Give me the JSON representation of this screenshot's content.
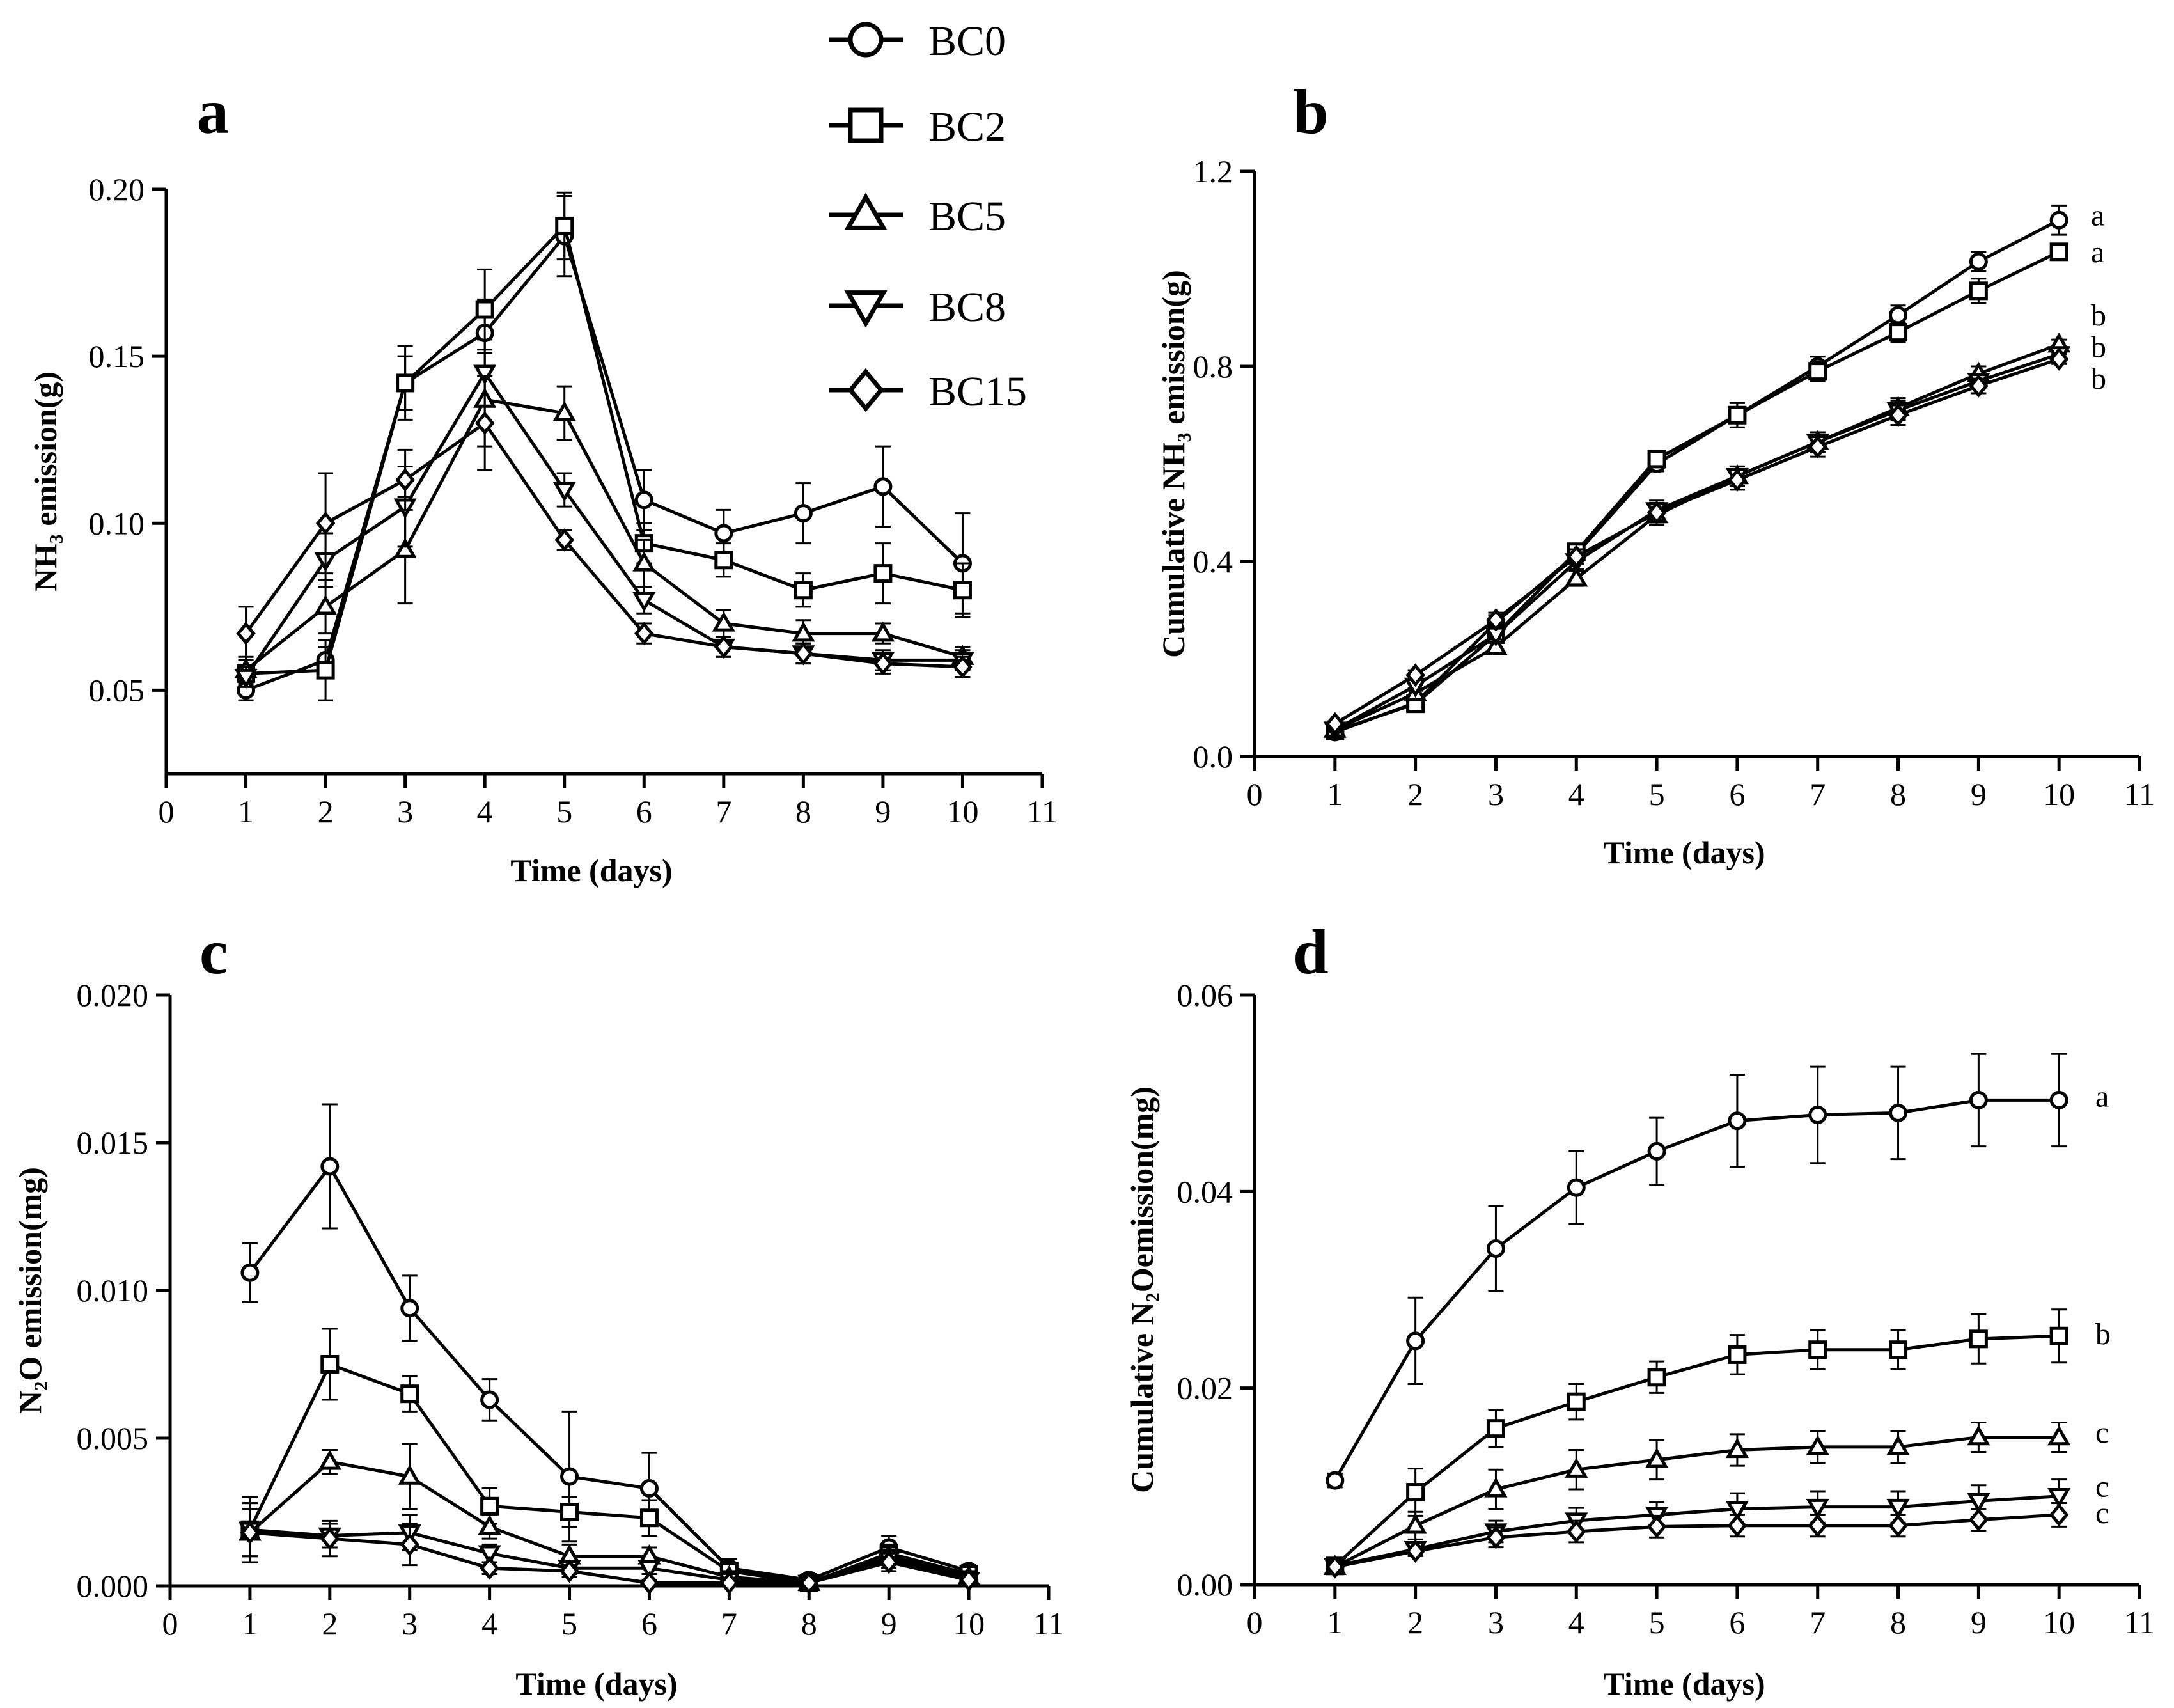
{
  "legend": {
    "entries": [
      {
        "name": "BC0",
        "marker": "circle"
      },
      {
        "name": "BC2",
        "marker": "square"
      },
      {
        "name": "BC5",
        "marker": "triangle-up"
      },
      {
        "name": "BC8",
        "marker": "triangle-down"
      },
      {
        "name": "BC15",
        "marker": "diamond"
      }
    ]
  },
  "chart_data": [
    {
      "panel": "a",
      "type": "line",
      "xlabel": "Time (days)",
      "ylabel": "NH₃ emission(g)",
      "xlim": [
        0,
        11
      ],
      "ylim": [
        0.025,
        0.2
      ],
      "xticks": [
        "0",
        "1",
        "2",
        "3",
        "4",
        "5",
        "6",
        "7",
        "8",
        "9",
        "10",
        "11"
      ],
      "yticks": [
        "0.05",
        "0.10",
        "0.15",
        "0.20"
      ],
      "x": [
        1,
        2,
        3,
        4,
        5,
        6,
        7,
        8,
        9,
        10
      ],
      "series": [
        {
          "name": "BC0",
          "values": [
            0.05,
            0.059,
            0.142,
            0.157,
            0.186,
            0.107,
            0.097,
            0.103,
            0.111,
            0.088
          ],
          "errors": [
            0.003,
            0.004,
            0.008,
            0.01,
            0.012,
            0.009,
            0.007,
            0.009,
            0.012,
            0.015
          ]
        },
        {
          "name": "BC2",
          "values": [
            0.055,
            0.056,
            0.142,
            0.164,
            0.189,
            0.094,
            0.089,
            0.08,
            0.085,
            0.08
          ],
          "errors": [
            0.004,
            0.009,
            0.011,
            0.012,
            0.01,
            0.006,
            0.005,
            0.005,
            0.009,
            0.008
          ]
        },
        {
          "name": "BC5",
          "values": [
            0.056,
            0.075,
            0.092,
            0.137,
            0.133,
            0.088,
            0.07,
            0.067,
            0.067,
            0.06
          ],
          "errors": [
            0.004,
            0.008,
            0.016,
            0.014,
            0.008,
            0.007,
            0.004,
            0.004,
            0.003,
            0.003
          ]
        },
        {
          "name": "BC8",
          "values": [
            0.054,
            0.089,
            0.105,
            0.145,
            0.11,
            0.077,
            0.063,
            0.061,
            0.059,
            0.059
          ],
          "errors": [
            0.003,
            0.008,
            0.012,
            0.01,
            0.005,
            0.004,
            0.003,
            0.003,
            0.003,
            0.003
          ]
        },
        {
          "name": "BC15",
          "values": [
            0.067,
            0.1,
            0.113,
            0.13,
            0.095,
            0.067,
            0.063,
            0.061,
            0.058,
            0.057
          ],
          "errors": [
            0.008,
            0.015,
            0.009,
            0.014,
            0.003,
            0.003,
            0.003,
            0.003,
            0.003,
            0.003
          ]
        }
      ],
      "significance": []
    },
    {
      "panel": "b",
      "type": "line",
      "xlabel": "Time (days)",
      "ylabel": "Cumulative NH₃ emission(g)",
      "xlim": [
        0,
        11
      ],
      "ylim": [
        0,
        1.2
      ],
      "xticks": [
        "0",
        "1",
        "2",
        "3",
        "4",
        "5",
        "6",
        "7",
        "8",
        "9",
        "10",
        "11"
      ],
      "yticks": [
        "0.0",
        "0.4",
        "0.8",
        "1.2"
      ],
      "x": [
        1,
        2,
        3,
        4,
        5,
        6,
        7,
        8,
        9,
        10
      ],
      "series": [
        {
          "name": "BC0",
          "values": [
            0.05,
            0.11,
            0.275,
            0.415,
            0.6,
            0.7,
            0.8,
            0.905,
            1.015,
            1.1
          ],
          "errors": [
            0.005,
            0.01,
            0.015,
            0.015,
            0.015,
            0.025,
            0.02,
            0.02,
            0.02,
            0.03
          ]
        },
        {
          "name": "BC2",
          "values": [
            0.052,
            0.108,
            0.25,
            0.42,
            0.61,
            0.7,
            0.79,
            0.87,
            0.955,
            1.035
          ],
          "errors": [
            0.005,
            0.01,
            0.015,
            0.015,
            0.015,
            0.025,
            0.02,
            0.02,
            0.025,
            0.01
          ]
        },
        {
          "name": "BC5",
          "values": [
            0.055,
            0.13,
            0.225,
            0.365,
            0.495,
            0.575,
            0.645,
            0.715,
            0.785,
            0.845
          ],
          "errors": [
            0.005,
            0.01,
            0.015,
            0.015,
            0.02,
            0.02,
            0.02,
            0.02,
            0.015,
            0.01
          ]
        },
        {
          "name": "BC8",
          "values": [
            0.055,
            0.145,
            0.25,
            0.4,
            0.505,
            0.575,
            0.645,
            0.71,
            0.77,
            0.825
          ],
          "errors": [
            0.005,
            0.01,
            0.015,
            0.015,
            0.02,
            0.02,
            0.02,
            0.02,
            0.015,
            0.01
          ]
        },
        {
          "name": "BC15",
          "values": [
            0.067,
            0.167,
            0.28,
            0.41,
            0.5,
            0.567,
            0.635,
            0.7,
            0.76,
            0.815
          ],
          "errors": [
            0.005,
            0.01,
            0.015,
            0.015,
            0.02,
            0.02,
            0.02,
            0.02,
            0.015,
            0.01
          ]
        }
      ],
      "significance": [
        {
          "label": "a",
          "y": 1.11
        },
        {
          "label": "a",
          "y": 1.035
        },
        {
          "label": "b",
          "y": 0.905
        },
        {
          "label": "b",
          "y": 0.84
        },
        {
          "label": "b",
          "y": 0.775
        }
      ]
    },
    {
      "panel": "c",
      "type": "line",
      "xlabel": "Time (days)",
      "ylabel": "N₂O emission(mg)",
      "xlim": [
        0,
        11
      ],
      "ylim": [
        0,
        0.02
      ],
      "xticks": [
        "0",
        "1",
        "2",
        "3",
        "4",
        "5",
        "6",
        "7",
        "8",
        "9",
        "10",
        "11"
      ],
      "yticks": [
        "0.000",
        "0.005",
        "0.010",
        "0.015",
        "0.020"
      ],
      "x": [
        1,
        2,
        3,
        4,
        5,
        6,
        7,
        8,
        9,
        10
      ],
      "series": [
        {
          "name": "BC0",
          "values": [
            0.0106,
            0.0142,
            0.0094,
            0.0063,
            0.0037,
            0.0033,
            0.0006,
            0.0002,
            0.0013,
            0.0005
          ],
          "errors": [
            0.001,
            0.0021,
            0.0011,
            0.0007,
            0.0022,
            0.0012,
            0.0003,
            0.0002,
            0.0004,
            0.0002
          ]
        },
        {
          "name": "BC2",
          "values": [
            0.0019,
            0.0075,
            0.0065,
            0.0027,
            0.0025,
            0.0023,
            0.0005,
            0.0001,
            0.0011,
            0.0004
          ],
          "errors": [
            0.0011,
            0.0012,
            0.0006,
            0.0006,
            0.0005,
            0.0006,
            0.0002,
            0.0001,
            0.0003,
            0.0002
          ]
        },
        {
          "name": "BC5",
          "values": [
            0.0018,
            0.0042,
            0.0037,
            0.002,
            0.001,
            0.001,
            0.0003,
            0.0001,
            0.001,
            0.0003
          ],
          "errors": [
            0.001,
            0.0004,
            0.0011,
            0.0004,
            0.0004,
            0.0003,
            0.0002,
            0.0001,
            0.0003,
            0.0002
          ]
        },
        {
          "name": "BC8",
          "values": [
            0.0019,
            0.0017,
            0.0018,
            0.0011,
            0.0006,
            0.0006,
            0.0002,
            0.0001,
            0.0009,
            0.0002
          ],
          "errors": [
            0.0009,
            0.0004,
            0.0006,
            0.0003,
            0.0002,
            0.0002,
            0.0001,
            0.0001,
            0.0003,
            0.0001
          ]
        },
        {
          "name": "BC15",
          "values": [
            0.0018,
            0.0016,
            0.0014,
            0.0006,
            0.0005,
            0.0001,
            0.0001,
            0.0001,
            0.0008,
            0.0002
          ],
          "errors": [
            0.0008,
            0.0006,
            0.0007,
            0.0002,
            0.0002,
            0.0001,
            0.0001,
            0.0001,
            0.0003,
            0.0001
          ]
        }
      ],
      "significance": []
    },
    {
      "panel": "d",
      "type": "line",
      "xlabel": "Time (days)",
      "ylabel": "Cumulative N₂Oemission(mg)",
      "xlim": [
        0,
        11
      ],
      "ylim": [
        0,
        0.06
      ],
      "xticks": [
        "0",
        "1",
        "2",
        "3",
        "4",
        "5",
        "6",
        "7",
        "8",
        "9",
        "10",
        "11"
      ],
      "yticks": [
        "0.00",
        "0.02",
        "0.04",
        "0.06"
      ],
      "x": [
        1,
        2,
        3,
        4,
        5,
        6,
        7,
        8,
        9,
        10
      ],
      "series": [
        {
          "name": "BC0",
          "values": [
            0.0106,
            0.0248,
            0.0342,
            0.0404,
            0.0441,
            0.0472,
            0.0478,
            0.048,
            0.0493,
            0.0493
          ],
          "errors": [
            0.0007,
            0.0044,
            0.0043,
            0.0037,
            0.0034,
            0.0047,
            0.0049,
            0.0047,
            0.0047,
            0.0047
          ]
        },
        {
          "name": "BC2",
          "values": [
            0.0019,
            0.0094,
            0.0159,
            0.0186,
            0.0211,
            0.0234,
            0.0239,
            0.0239,
            0.025,
            0.0253
          ],
          "errors": [
            0.0006,
            0.0024,
            0.0019,
            0.0018,
            0.0016,
            0.002,
            0.002,
            0.002,
            0.0025,
            0.0027
          ]
        },
        {
          "name": "BC5",
          "values": [
            0.0018,
            0.006,
            0.0097,
            0.0117,
            0.0127,
            0.0137,
            0.014,
            0.014,
            0.015,
            0.015
          ],
          "errors": [
            0.0005,
            0.0014,
            0.002,
            0.002,
            0.002,
            0.0016,
            0.0016,
            0.0016,
            0.0015,
            0.0015
          ]
        },
        {
          "name": "BC8",
          "values": [
            0.0019,
            0.0036,
            0.0054,
            0.0065,
            0.0071,
            0.0077,
            0.0079,
            0.0079,
            0.0085,
            0.009
          ],
          "errors": [
            0.0005,
            0.0005,
            0.0011,
            0.0013,
            0.0013,
            0.0016,
            0.0016,
            0.0016,
            0.0016,
            0.0017
          ]
        },
        {
          "name": "BC15",
          "values": [
            0.0018,
            0.0034,
            0.0048,
            0.0054,
            0.0059,
            0.006,
            0.006,
            0.006,
            0.0066,
            0.0071
          ],
          "errors": [
            0.0005,
            0.0005,
            0.001,
            0.0011,
            0.0011,
            0.0011,
            0.0011,
            0.0011,
            0.0011,
            0.0012
          ]
        }
      ],
      "significance": [
        {
          "label": "a",
          "y": 0.0497
        },
        {
          "label": "b",
          "y": 0.0255
        },
        {
          "label": "c",
          "y": 0.0155
        },
        {
          "label": "c",
          "y": 0.01
        },
        {
          "label": "c",
          "y": 0.0073
        }
      ]
    }
  ]
}
